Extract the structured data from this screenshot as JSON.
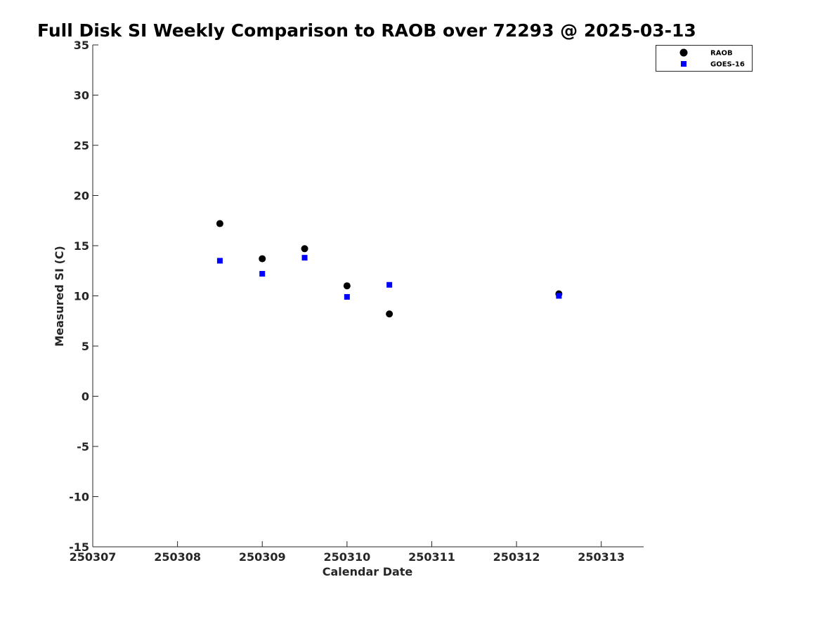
{
  "chart_data": {
    "type": "scatter",
    "title": "Full Disk SI Weekly Comparison to RAOB over 72293 @ 2025-03-13",
    "xlabel": "Calendar Date",
    "ylabel": "Measured SI (C)",
    "xlim": [
      "2025-03-07",
      "2025-03-13 12:00"
    ],
    "ylim": [
      -15,
      35
    ],
    "x_ticks": [
      {
        "date": "2025-03-07",
        "label": "250307"
      },
      {
        "date": "2025-03-08",
        "label": "250308"
      },
      {
        "date": "2025-03-09",
        "label": "250309"
      },
      {
        "date": "2025-03-10",
        "label": "250310"
      },
      {
        "date": "2025-03-11",
        "label": "250311"
      },
      {
        "date": "2025-03-12",
        "label": "250312"
      },
      {
        "date": "2025-03-13",
        "label": "250313"
      }
    ],
    "y_ticks": [
      35,
      30,
      25,
      20,
      15,
      10,
      5,
      0,
      -5,
      -10,
      -15
    ],
    "grid": false,
    "legend_position": "top-right",
    "series": [
      {
        "name": "RAOB",
        "marker": "circle",
        "color": "#000000",
        "points": [
          {
            "x": "2025-03-08 12:00",
            "y": 17.2
          },
          {
            "x": "2025-03-09 00:00",
            "y": 13.7
          },
          {
            "x": "2025-03-09 12:00",
            "y": 14.7
          },
          {
            "x": "2025-03-10 00:00",
            "y": 11.0
          },
          {
            "x": "2025-03-10 12:00",
            "y": 8.2
          },
          {
            "x": "2025-03-12 12:00",
            "y": 10.2
          }
        ]
      },
      {
        "name": "GOES-16",
        "marker": "square",
        "color": "#0000ff",
        "points": [
          {
            "x": "2025-03-08 12:00",
            "y": 13.5
          },
          {
            "x": "2025-03-09 00:00",
            "y": 12.2
          },
          {
            "x": "2025-03-09 12:00",
            "y": 13.8
          },
          {
            "x": "2025-03-10 00:00",
            "y": 9.9
          },
          {
            "x": "2025-03-10 12:00",
            "y": 11.1
          },
          {
            "x": "2025-03-12 12:00",
            "y": 10.0
          }
        ]
      }
    ]
  }
}
